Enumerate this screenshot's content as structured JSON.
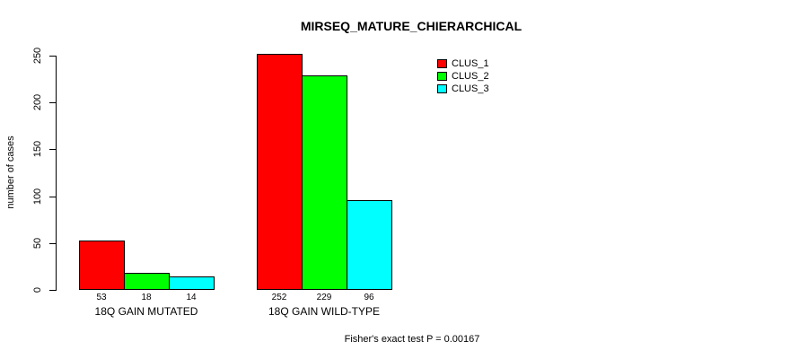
{
  "title": "MIRSEQ_MATURE_CHIERARCHICAL",
  "footer": "Fisher's exact test P = 0.00167",
  "chart_data": {
    "type": "bar",
    "title": "MIRSEQ_MATURE_CHIERARCHICAL",
    "xlabel": "",
    "ylabel": "number of cases",
    "categories": [
      "18Q GAIN MUTATED",
      "18Q GAIN WILD-TYPE"
    ],
    "series": [
      {
        "name": "CLUS_1",
        "color": "#ff0000",
        "values": [
          53,
          252
        ]
      },
      {
        "name": "CLUS_2",
        "color": "#00ff00",
        "values": [
          18,
          229
        ]
      },
      {
        "name": "CLUS_3",
        "color": "#00ffff",
        "values": [
          14,
          96
        ]
      }
    ],
    "bar_value_labels": [
      [
        53,
        18,
        14
      ],
      [
        252,
        229,
        96
      ]
    ],
    "yticks": [
      0,
      50,
      100,
      150,
      200,
      250
    ],
    "ylim": [
      0,
      250
    ],
    "grid": false,
    "legend_position": "top-right",
    "annotation": "Fisher's exact test P = 0.00167",
    "bar_border_color": "#000000",
    "background_color": "#ffffff"
  }
}
